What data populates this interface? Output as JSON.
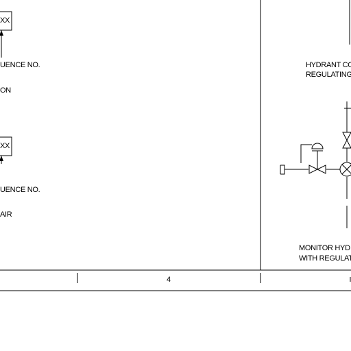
{
  "left_panel": {
    "tag_box_1": "XX",
    "sequence_label_1": "UENCE NO.",
    "fragment_1": "ON",
    "tag_box_2": "XX",
    "sequence_label_2": "UENCE NO.",
    "fragment_2": "AIR"
  },
  "right_panel": {
    "hydrant_title_line1": "HYDRANT CO",
    "hydrant_title_line2": "REGULATING",
    "monitor_title_line1": "MONITOR HYD",
    "monitor_title_line2": "WITH REGULAT"
  },
  "footer": {
    "column_number": "4"
  },
  "icons": [
    "gate-valve-icon",
    "control-valve-icon",
    "diaphragm-actuator-icon",
    "monitor-valve-icon",
    "pipe-cap-icon"
  ]
}
